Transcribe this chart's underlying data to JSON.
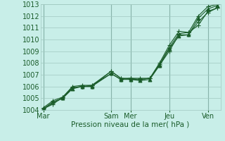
{
  "xlabel": "Pression niveau de la mer( hPa )",
  "bg_color": "#c8eee8",
  "plot_bg_color": "#c8eee8",
  "grid_color": "#a0c8c0",
  "line_color": "#1a5c2a",
  "vline_color": "#6a9a90",
  "ylim": [
    1004,
    1013
  ],
  "yticks": [
    1004,
    1005,
    1006,
    1007,
    1008,
    1009,
    1010,
    1011,
    1012,
    1013
  ],
  "xtick_labels": [
    "Mar",
    "Sam",
    "Mer",
    "Jeu",
    "Ven"
  ],
  "xtick_positions": [
    0.0,
    3.5,
    4.5,
    6.5,
    8.5
  ],
  "series": [
    [
      1004.1,
      1004.7,
      1005.0,
      1005.8,
      1006.0,
      1006.0,
      1007.1,
      1006.6,
      1006.6,
      1006.5,
      1006.6,
      1007.8,
      1009.2,
      1010.3,
      1010.4,
      1011.8,
      1012.6,
      1012.9
    ],
    [
      1004.1,
      1004.5,
      1005.1,
      1005.9,
      1006.0,
      1006.0,
      1007.3,
      1006.7,
      1006.6,
      1006.6,
      1006.7,
      1007.9,
      1009.3,
      1010.5,
      1010.6,
      1011.2,
      1012.4,
      1012.7
    ],
    [
      1004.1,
      1004.6,
      1005.0,
      1005.9,
      1006.0,
      1006.1,
      1007.1,
      1006.6,
      1006.7,
      1006.7,
      1006.7,
      1008.0,
      1009.5,
      1010.7,
      1010.6,
      1012.0,
      1012.8,
      1013.0
    ],
    [
      1004.2,
      1004.8,
      1005.1,
      1006.0,
      1006.1,
      1006.1,
      1007.3,
      1006.7,
      1006.7,
      1006.6,
      1006.7,
      1007.8,
      1009.0,
      1010.4,
      1010.4,
      1011.5,
      1012.3,
      1012.7
    ]
  ],
  "x_values": [
    0.0,
    0.5,
    1.0,
    1.5,
    2.0,
    2.5,
    3.5,
    4.0,
    4.5,
    5.0,
    5.5,
    6.0,
    6.5,
    7.0,
    7.5,
    8.0,
    8.5,
    9.0
  ],
  "marker_style": "+",
  "marker_size": 4,
  "line_width": 0.8,
  "font_size": 7,
  "label_fontsize": 7.5
}
